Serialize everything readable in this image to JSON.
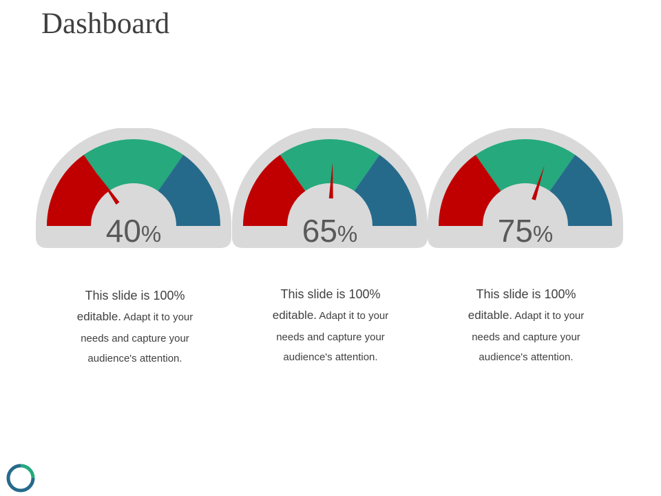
{
  "slide": {
    "title": "Dashboard"
  },
  "colors": {
    "red": "#C00000",
    "green": "#25A97D",
    "blue": "#266A8B",
    "frame": "#D9D9D9",
    "needle": "#C00000",
    "text": "#404040",
    "value_text": "#595959"
  },
  "gauges": [
    {
      "value": 40,
      "percent_symbol": "%",
      "description": {
        "line1": "This slide is 100%",
        "line2_strong": "editable.",
        "line2_rest": " Adapt it to your",
        "line3": "needs and capture your",
        "line4": "audience's attention."
      }
    },
    {
      "value": 65,
      "percent_symbol": "%",
      "description": {
        "line1": "This slide is 100%",
        "line2_strong": "editable.",
        "line2_rest": " Adapt it to your",
        "line3": "needs and capture your",
        "line4": "audience's attention."
      }
    },
    {
      "value": 75,
      "percent_symbol": "%",
      "description": {
        "line1": "This slide is 100%",
        "line2_strong": "editable.",
        "line2_rest": " Adapt it to your",
        "line3": "needs and capture your",
        "line4": "audience's attention."
      }
    }
  ],
  "logo": {
    "icon": "ring-logo-icon"
  }
}
